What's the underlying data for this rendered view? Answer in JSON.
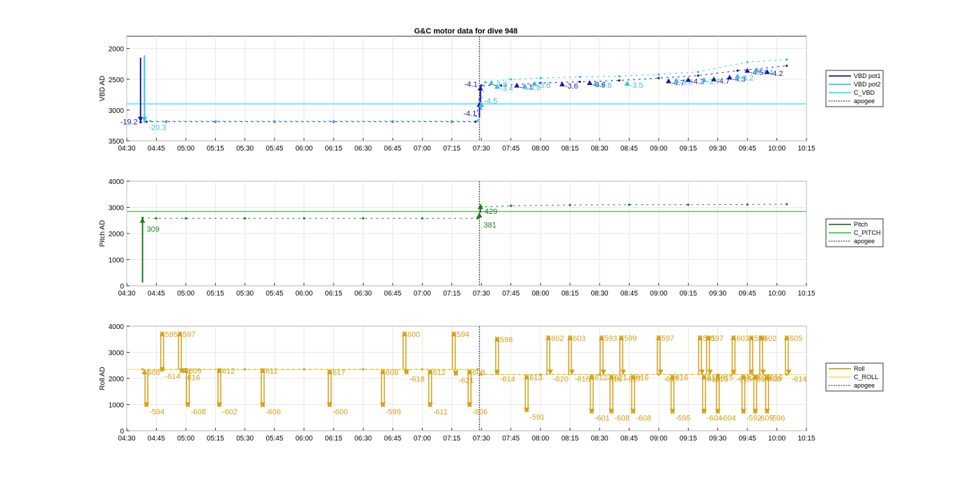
{
  "figure": {
    "title": "G&C motor data for dive 948"
  },
  "time_ticks": [
    "04:30",
    "04:45",
    "05:00",
    "05:15",
    "05:30",
    "05:45",
    "06:00",
    "06:15",
    "06:30",
    "06:45",
    "07:00",
    "07:15",
    "07:30",
    "07:45",
    "08:00",
    "08:15",
    "08:30",
    "08:45",
    "09:00",
    "09:15",
    "09:30",
    "09:45",
    "10:00",
    "10:15"
  ],
  "colors": {
    "vbd_pot1": "#1a1aa8",
    "vbd_pot2": "#3cbde8",
    "c_vbd": "#40e0e0",
    "pitch": "#1f7a1f",
    "c_pitch": "#3ccc3c",
    "roll": "#d4a017",
    "c_roll": "#f2e65a",
    "apogee": "#444444"
  },
  "chart_data": [
    {
      "type": "line",
      "title": "G&C motor data for dive 948",
      "xlabel": "",
      "ylabel": "VBD AD",
      "x_range": [
        "04:30",
        "10:15"
      ],
      "ylim": [
        1800,
        3500
      ],
      "y_reversed": true,
      "y_ticks": [
        2000,
        2500,
        3000,
        3500
      ],
      "grid": true,
      "legend_position": "right",
      "legend": [
        "VBD pot1",
        "VBD pot2",
        "C_VBD",
        "apogee"
      ],
      "reference_lines": {
        "C_VBD": 2900,
        "apogee": "07:29"
      },
      "series": [
        {
          "name": "VBD pot1",
          "x": [
            "04:37",
            "04:40",
            "04:50",
            "05:15",
            "05:45",
            "06:15",
            "06:45",
            "07:15",
            "07:27",
            "07:30",
            "07:40",
            "08:00",
            "08:20",
            "08:40",
            "09:00",
            "09:20",
            "09:40",
            "10:05"
          ],
          "values": [
            3200,
            3190,
            3190,
            3190,
            3190,
            3190,
            3190,
            3190,
            3190,
            2600,
            2600,
            2560,
            2540,
            2520,
            2480,
            2440,
            2360,
            2280
          ]
        },
        {
          "name": "VBD pot2",
          "x": [
            "04:39",
            "04:42",
            "04:50",
            "05:15",
            "05:45",
            "06:15",
            "06:45",
            "07:15",
            "07:28",
            "07:32",
            "07:45",
            "08:00",
            "08:20",
            "08:40",
            "09:00",
            "09:20",
            "09:45",
            "10:05"
          ],
          "values": [
            3190,
            3180,
            3180,
            3180,
            3180,
            3180,
            3180,
            3180,
            3180,
            2550,
            2500,
            2480,
            2460,
            2450,
            2420,
            2380,
            2220,
            2180
          ]
        }
      ],
      "pulses": [
        {
          "series": "VBD pot1",
          "x": "04:37",
          "from": 2150,
          "to": 3190,
          "label": "-19.2"
        },
        {
          "series": "VBD pot2",
          "x": "04:39",
          "from": 2110,
          "to": 3190,
          "label": "-20.3"
        },
        {
          "series": "VBD pot1",
          "x": "07:29",
          "from": 3120,
          "to": 2870,
          "label": "-4.1"
        },
        {
          "series": "VBD pot1",
          "x": "07:29.5",
          "from": 2870,
          "to": 2600,
          "label": "-4.1"
        },
        {
          "series": "VBD pot2",
          "x": "07:30",
          "from": 3000,
          "to": 2870,
          "label": "-4.5"
        }
      ],
      "markers": [
        {
          "series": "VBD pot2",
          "x": "07:35",
          "value": 2560,
          "label": "-3.8"
        },
        {
          "series": "VBD pot2",
          "x": "07:38",
          "value": 2620,
          "label": "-3.4"
        },
        {
          "series": "VBD pot1",
          "x": "07:48",
          "value": 2600,
          "label": "-4.1"
        },
        {
          "series": "VBD pot2",
          "x": "07:52",
          "value": 2610,
          "label": "-4.6"
        },
        {
          "series": "VBD pot2",
          "x": "07:57",
          "value": 2570,
          "label": "-3.6"
        },
        {
          "series": "VBD pot1",
          "x": "08:11",
          "value": 2580,
          "label": "-3.6"
        },
        {
          "series": "VBD pot1",
          "x": "08:25",
          "value": 2560,
          "label": "-3.6"
        },
        {
          "series": "VBD pot2",
          "x": "08:28",
          "value": 2570,
          "label": "-3.8"
        },
        {
          "series": "VBD pot2",
          "x": "08:44",
          "value": 2570,
          "label": "-3.5"
        },
        {
          "series": "VBD pot1",
          "x": "09:05",
          "value": 2530,
          "label": "-4.7"
        },
        {
          "series": "VBD pot2",
          "x": "09:09",
          "value": 2520,
          "label": "-3.3"
        },
        {
          "series": "VBD pot1",
          "x": "09:15",
          "value": 2510,
          "label": "-4.3"
        },
        {
          "series": "VBD pot2",
          "x": "09:23",
          "value": 2510,
          "label": "-2.7"
        },
        {
          "series": "VBD pot1",
          "x": "09:28",
          "value": 2500,
          "label": "-4.7"
        },
        {
          "series": "VBD pot1",
          "x": "09:36",
          "value": 2470,
          "label": "-4.3"
        },
        {
          "series": "VBD pot2",
          "x": "09:40",
          "value": 2450,
          "label": "-4.2"
        },
        {
          "series": "VBD pot1",
          "x": "09:45",
          "value": 2360,
          "label": "-4.5"
        },
        {
          "series": "VBD pot2",
          "x": "09:50",
          "value": 2360,
          "label": "-4.4"
        },
        {
          "series": "VBD pot1",
          "x": "09:55",
          "value": 2380,
          "label": "-4.2"
        }
      ]
    },
    {
      "type": "line",
      "xlabel": "",
      "ylabel": "Pitch AD",
      "x_range": [
        "04:30",
        "10:15"
      ],
      "ylim": [
        0,
        4000
      ],
      "y_ticks": [
        0,
        1000,
        2000,
        3000,
        4000
      ],
      "grid": true,
      "legend_position": "right",
      "legend": [
        "Pitch",
        "C_PITCH",
        "apogee"
      ],
      "reference_lines": {
        "C_PITCH": 2840,
        "apogee": "07:29"
      },
      "series": [
        {
          "name": "Pitch",
          "x": [
            "04:38",
            "04:45",
            "05:00",
            "05:30",
            "06:00",
            "06:30",
            "07:00",
            "07:28",
            "07:30",
            "07:45",
            "08:15",
            "08:45",
            "09:15",
            "09:45",
            "10:05"
          ],
          "values": [
            2600,
            2580,
            2580,
            2580,
            2580,
            2580,
            2580,
            2580,
            3020,
            3060,
            3090,
            3100,
            3100,
            3110,
            3120
          ]
        }
      ],
      "pulses": [
        {
          "series": "Pitch",
          "x": "04:38",
          "from": 120,
          "to": 2600,
          "label": "309"
        },
        {
          "series": "Pitch",
          "x": "07:29",
          "from": 2600,
          "to": 2800,
          "label": "381"
        },
        {
          "series": "Pitch",
          "x": "07:29.5",
          "from": 2800,
          "to": 3120,
          "label": "429"
        }
      ]
    },
    {
      "type": "line",
      "xlabel": "",
      "ylabel": "Roll AD",
      "x_range": [
        "04:30",
        "10:15"
      ],
      "ylim": [
        0,
        4000
      ],
      "y_ticks": [
        0,
        1000,
        2000,
        3000,
        4000
      ],
      "grid": true,
      "legend_position": "right",
      "legend": [
        "Roll",
        "C_ROLL",
        "apogee"
      ],
      "reference_lines": {
        "C_ROLL": 2340,
        "C_ROLL_after_apogee": 2150,
        "apogee": "07:29"
      },
      "series": [
        {
          "name": "Roll",
          "x": [
            "04:38",
            "05:00",
            "05:30",
            "06:00",
            "06:30",
            "07:00",
            "07:28",
            "07:30",
            "08:00",
            "08:30",
            "09:00",
            "09:30",
            "10:05"
          ],
          "values": [
            2350,
            2350,
            2350,
            2350,
            2350,
            2350,
            2350,
            2150,
            2150,
            2150,
            2150,
            2150,
            2150
          ]
        }
      ],
      "roll_pulses": [
        {
          "x": "04:39",
          "dir": "up",
          "peak": 2350,
          "label": "608"
        },
        {
          "x": "04:40",
          "dir": "down",
          "peak": 900,
          "label": "-594"
        },
        {
          "x": "04:48",
          "dir": "up",
          "peak": 3800,
          "label": "595"
        },
        {
          "x": "04:48",
          "dir": "down",
          "peak": 2250,
          "label": "-614"
        },
        {
          "x": "04:57",
          "dir": "up",
          "peak": 3800,
          "label": "597"
        },
        {
          "x": "04:58",
          "dir": "down",
          "peak": 2200,
          "label": "-616"
        },
        {
          "x": "05:00",
          "dir": "up",
          "peak": 2400,
          "label": "609"
        },
        {
          "x": "05:01",
          "dir": "down",
          "peak": 900,
          "label": "-608"
        },
        {
          "x": "05:17",
          "dir": "up",
          "peak": 2400,
          "label": "612"
        },
        {
          "x": "05:17",
          "dir": "down",
          "peak": 900,
          "label": "-602"
        },
        {
          "x": "05:39",
          "dir": "up",
          "peak": 2400,
          "label": "611"
        },
        {
          "x": "05:39",
          "dir": "down",
          "peak": 900,
          "label": "-606"
        },
        {
          "x": "06:13",
          "dir": "up",
          "peak": 2350,
          "label": "617"
        },
        {
          "x": "06:13",
          "dir": "down",
          "peak": 900,
          "label": "-600"
        },
        {
          "x": "06:40",
          "dir": "up",
          "peak": 2350,
          "label": "608"
        },
        {
          "x": "06:40",
          "dir": "down",
          "peak": 900,
          "label": "-599"
        },
        {
          "x": "06:51",
          "dir": "up",
          "peak": 3800,
          "label": "600"
        },
        {
          "x": "06:52",
          "dir": "down",
          "peak": 2150,
          "label": "-618"
        },
        {
          "x": "07:04",
          "dir": "up",
          "peak": 2350,
          "label": "612"
        },
        {
          "x": "07:04",
          "dir": "down",
          "peak": 900,
          "label": "-611"
        },
        {
          "x": "07:16",
          "dir": "up",
          "peak": 3800,
          "label": "594"
        },
        {
          "x": "07:17",
          "dir": "down",
          "peak": 2100,
          "label": "-621"
        },
        {
          "x": "07:24",
          "dir": "up",
          "peak": 2350,
          "label": "608"
        },
        {
          "x": "07:24",
          "dir": "down",
          "peak": 900,
          "label": "-606"
        },
        {
          "x": "07:38",
          "dir": "up",
          "peak": 3600,
          "label": "598"
        },
        {
          "x": "07:38",
          "dir": "down",
          "peak": 2150,
          "label": "-614"
        },
        {
          "x": "07:53",
          "dir": "up",
          "peak": 2150,
          "label": "613"
        },
        {
          "x": "07:53",
          "dir": "down",
          "peak": 700,
          "label": "-591"
        },
        {
          "x": "08:04",
          "dir": "up",
          "peak": 3650,
          "label": "602"
        },
        {
          "x": "08:05",
          "dir": "down",
          "peak": 2150,
          "label": "-620"
        },
        {
          "x": "08:15",
          "dir": "up",
          "peak": 3650,
          "label": "603"
        },
        {
          "x": "08:16",
          "dir": "down",
          "peak": 2150,
          "label": "-616"
        },
        {
          "x": "08:26",
          "dir": "up",
          "peak": 2150,
          "label": "612"
        },
        {
          "x": "08:26",
          "dir": "down",
          "peak": 650,
          "label": "-601"
        },
        {
          "x": "08:31",
          "dir": "up",
          "peak": 3650,
          "label": "593"
        },
        {
          "x": "08:32",
          "dir": "down",
          "peak": 2150,
          "label": "-616"
        },
        {
          "x": "08:36",
          "dir": "up",
          "peak": 2150,
          "label": "621"
        },
        {
          "x": "08:36",
          "dir": "down",
          "peak": 650,
          "label": "-608"
        },
        {
          "x": "08:41",
          "dir": "up",
          "peak": 3650,
          "label": "599"
        },
        {
          "x": "08:42",
          "dir": "down",
          "peak": 2150,
          "label": "-627"
        },
        {
          "x": "08:47",
          "dir": "up",
          "peak": 2150,
          "label": "616"
        },
        {
          "x": "08:47",
          "dir": "down",
          "peak": 650,
          "label": "-608"
        },
        {
          "x": "09:00",
          "dir": "up",
          "peak": 3650,
          "label": "597"
        },
        {
          "x": "09:01",
          "dir": "down",
          "peak": 2150,
          "label": "-617"
        },
        {
          "x": "09:07",
          "dir": "up",
          "peak": 2150,
          "label": "616"
        },
        {
          "x": "09:07",
          "dir": "down",
          "peak": 650,
          "label": "-595"
        },
        {
          "x": "09:21",
          "dir": "up",
          "peak": 3650,
          "label": "591"
        },
        {
          "x": "09:22",
          "dir": "down",
          "peak": 2150,
          "label": "-616"
        },
        {
          "x": "09:23",
          "dir": "up",
          "peak": 2150,
          "label": "614"
        },
        {
          "x": "09:23",
          "dir": "down",
          "peak": 650,
          "label": "-604"
        },
        {
          "x": "09:25",
          "dir": "up",
          "peak": 3650,
          "label": "597"
        },
        {
          "x": "09:26",
          "dir": "down",
          "peak": 2150,
          "label": "-615"
        },
        {
          "x": "09:30",
          "dir": "up",
          "peak": 2150,
          "label": "615"
        },
        {
          "x": "09:30",
          "dir": "down",
          "peak": 650,
          "label": "-604"
        },
        {
          "x": "09:38",
          "dir": "up",
          "peak": 3650,
          "label": "603"
        },
        {
          "x": "09:38",
          "dir": "down",
          "peak": 2150,
          "label": "-615"
        },
        {
          "x": "09:43",
          "dir": "up",
          "peak": 2150,
          "label": "627"
        },
        {
          "x": "09:43",
          "dir": "down",
          "peak": 650,
          "label": "-592"
        },
        {
          "x": "09:47",
          "dir": "up",
          "peak": 3650,
          "label": "596"
        },
        {
          "x": "09:47",
          "dir": "down",
          "peak": 2150,
          "label": "-614"
        },
        {
          "x": "09:49",
          "dir": "up",
          "peak": 2150,
          "label": "625"
        },
        {
          "x": "09:49",
          "dir": "down",
          "peak": 650,
          "label": "-605"
        },
        {
          "x": "09:52",
          "dir": "up",
          "peak": 3650,
          "label": "602"
        },
        {
          "x": "09:53",
          "dir": "down",
          "peak": 2150,
          "label": "-620"
        },
        {
          "x": "09:55",
          "dir": "up",
          "peak": 2150,
          "label": "616"
        },
        {
          "x": "09:55",
          "dir": "down",
          "peak": 650,
          "label": "-596"
        },
        {
          "x": "10:05",
          "dir": "up",
          "peak": 3650,
          "label": "605"
        },
        {
          "x": "10:06",
          "dir": "down",
          "peak": 2150,
          "label": "-614"
        }
      ]
    }
  ]
}
